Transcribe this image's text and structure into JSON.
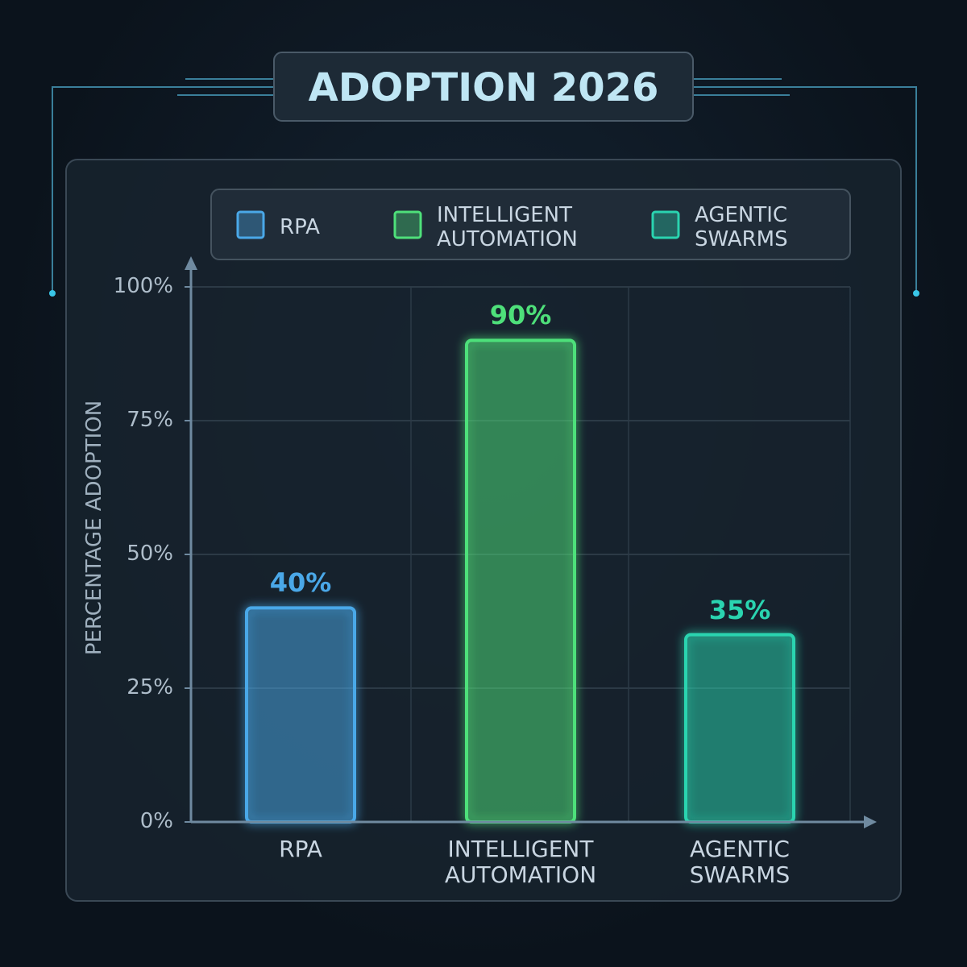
{
  "chart_data": {
    "type": "bar",
    "title": "ADOPTION 2026",
    "y_label": "PERCENTAGE ADOPTION",
    "categories": [
      "RPA",
      "INTELLIGENT AUTOMATION",
      "AGENTIC SWARMS"
    ],
    "series": [
      {
        "name": "RPA",
        "color": "#4aa8e8"
      },
      {
        "name": "INTELLIGENT AUTOMATION",
        "color": "#4ee07a"
      },
      {
        "name": "AGENTIC SWARMS",
        "color": "#2ad4b0"
      }
    ],
    "values": [
      40,
      90,
      35
    ],
    "value_labels": [
      "40%",
      "90%",
      "35%"
    ],
    "ylim": [
      0,
      100
    ],
    "yticks": [
      {
        "value": 0,
        "label": "0%"
      },
      {
        "value": 25,
        "label": "25%"
      },
      {
        "value": 50,
        "label": "50%"
      },
      {
        "value": 75,
        "label": "75%"
      },
      {
        "value": 100,
        "label": "100%"
      }
    ],
    "grid": true
  }
}
